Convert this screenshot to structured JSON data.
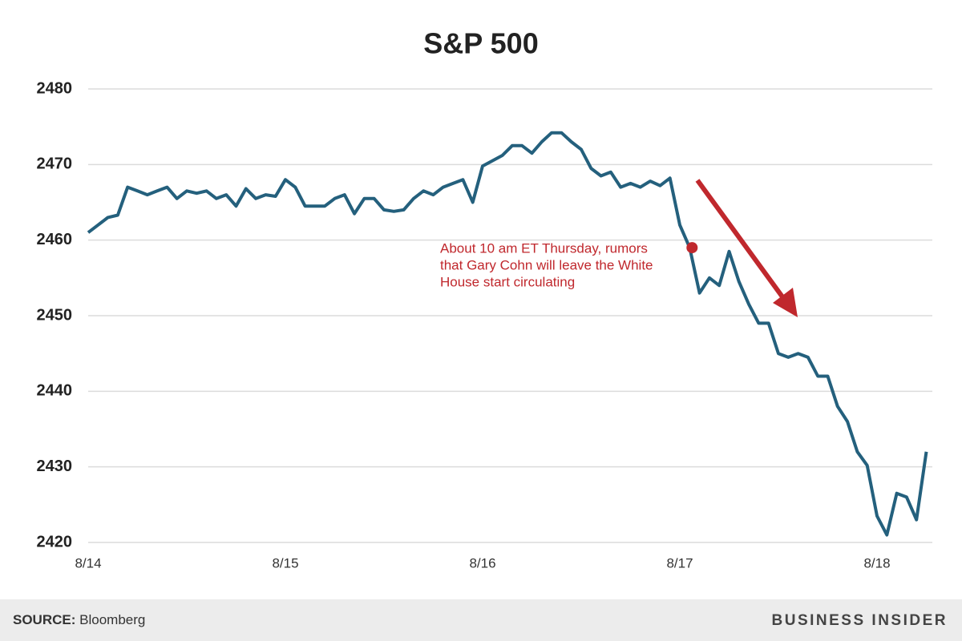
{
  "chart_data": {
    "type": "line",
    "title": "S&P 500",
    "categories": [
      "8/14",
      null,
      null,
      null,
      null,
      null,
      null,
      null,
      null,
      null,
      null,
      null,
      null,
      null,
      null,
      null,
      null,
      null,
      null,
      null,
      "8/15",
      null,
      null,
      null,
      null,
      null,
      null,
      null,
      null,
      null,
      null,
      null,
      null,
      null,
      null,
      null,
      null,
      null,
      null,
      null,
      "8/16",
      null,
      null,
      null,
      null,
      null,
      null,
      null,
      null,
      null,
      null,
      null,
      null,
      null,
      null,
      null,
      null,
      null,
      null,
      null,
      "8/17",
      null,
      null,
      null,
      null,
      null,
      null,
      null,
      null,
      null,
      null,
      null,
      null,
      null,
      null,
      null,
      null,
      null,
      null,
      null,
      "8/18",
      null,
      null,
      null,
      null,
      null
    ],
    "values": [
      2461,
      2462,
      2463,
      2463.3,
      2467,
      2466.5,
      2466,
      2466.5,
      2467,
      2465.5,
      2466.5,
      2466.2,
      2466.5,
      2465.5,
      2466,
      2464.5,
      2466.8,
      2465.5,
      2466,
      2465.8,
      2468,
      2467,
      2464.5,
      2464.5,
      2464.5,
      2465.5,
      2466,
      2463.5,
      2465.5,
      2465.5,
      2464,
      2463.8,
      2464,
      2465.5,
      2466.5,
      2466,
      2467,
      2467.5,
      2468,
      2465,
      2469.8,
      2470.5,
      2471.2,
      2472.5,
      2472.5,
      2471.5,
      2473,
      2474.2,
      2474.2,
      2473,
      2472,
      2469.5,
      2468.5,
      2469,
      2467,
      2467.5,
      2467,
      2467.8,
      2467.2,
      2468.2,
      2462,
      2459,
      2453,
      2455,
      2454,
      2458.5,
      2454.5,
      2451.5,
      2449,
      2449,
      2445,
      2444.5,
      2445,
      2444.5,
      2442,
      2442,
      2438,
      2436,
      2432,
      2430.2,
      2423.5,
      2421,
      2426.5,
      2426,
      2423,
      2432
    ],
    "color": "#24607d",
    "ylim": [
      2420,
      2480
    ],
    "yticks": [
      2420,
      2430,
      2440,
      2450,
      2460,
      2470,
      2480
    ],
    "grid": true,
    "annotation": {
      "index": 61,
      "color": "#c0282d",
      "lines": [
        "About 10 am ET Thursday, rumors",
        "that Gary Cohn will leave the White",
        "House start circulating"
      ]
    },
    "source_label": "SOURCE:",
    "source": "Bloomberg",
    "brand": "BUSINESS INSIDER"
  }
}
